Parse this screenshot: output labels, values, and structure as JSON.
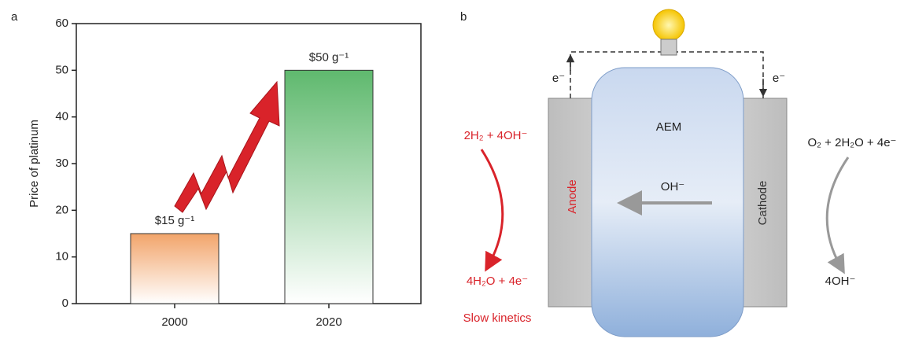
{
  "chart_data": {
    "type": "bar",
    "ylabel": "Price of platinum",
    "categories": [
      "2000",
      "2020"
    ],
    "values": [
      15,
      50
    ],
    "value_labels": [
      "$15 g⁻¹",
      "$50 g⁻¹"
    ],
    "colors": [
      "#f2a46a",
      "#5fb96e"
    ],
    "ylim": [
      0,
      60
    ],
    "yticks": [
      0,
      10,
      20,
      30,
      40,
      50,
      60
    ]
  },
  "panel_labels": [
    "a",
    "b"
  ],
  "diagram": {
    "electron_left": "e⁻",
    "electron_right": "e⁻",
    "membrane": "AEM",
    "ion": "OH⁻",
    "anode": "Anode",
    "cathode": "Cathode",
    "anode_reactants": "2H₂ + 4OH⁻",
    "anode_products": "4H₂O + 4e⁻",
    "anode_note": "Slow kinetics",
    "cathode_reactants": "O₂ + 2H₂O + 4e⁻",
    "cathode_products": "4OH⁻"
  }
}
